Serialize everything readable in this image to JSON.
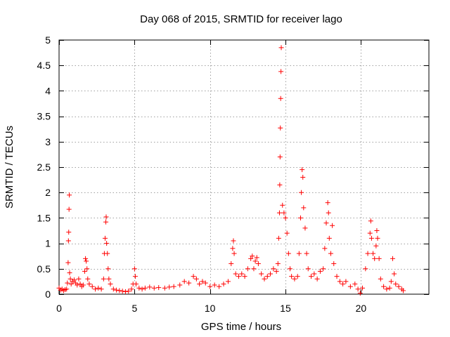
{
  "chart_data": {
    "type": "scatter",
    "title": "Day 068 of 2015, SRMTID for receiver lago",
    "xlabel": "GPS time / hours",
    "ylabel": "SRMTID / TECUs",
    "xlim": [
      0,
      24.5
    ],
    "ylim": [
      0,
      5
    ],
    "x_ticks": [
      0,
      5,
      10,
      15,
      20
    ],
    "x_tick_labels": [
      "0",
      "5",
      "10",
      "15",
      "20"
    ],
    "y_ticks": [
      0,
      0.5,
      1,
      1.5,
      2,
      2.5,
      3,
      3.5,
      4,
      4.5,
      5
    ],
    "y_tick_labels": [
      "0",
      "0.5",
      "1",
      "1.5",
      "2",
      "2.5",
      "3",
      "3.5",
      "4",
      "4.5",
      "5"
    ],
    "grid": true,
    "marker": "plus",
    "color": "#ff0000",
    "series": [
      {
        "name": "SRMTID",
        "points": [
          [
            0.0,
            0.12
          ],
          [
            0.1,
            0.08
          ],
          [
            0.2,
            0.1
          ],
          [
            0.3,
            0.07
          ],
          [
            0.4,
            0.09
          ],
          [
            0.5,
            0.1
          ],
          [
            0.55,
            0.22
          ],
          [
            0.6,
            0.62
          ],
          [
            0.62,
            1.05
          ],
          [
            0.64,
            1.22
          ],
          [
            0.66,
            1.67
          ],
          [
            0.68,
            1.95
          ],
          [
            0.7,
            0.42
          ],
          [
            0.75,
            0.3
          ],
          [
            0.8,
            0.2
          ],
          [
            0.9,
            0.25
          ],
          [
            1.0,
            0.28
          ],
          [
            1.1,
            0.22
          ],
          [
            1.2,
            0.18
          ],
          [
            1.3,
            0.3
          ],
          [
            1.4,
            0.2
          ],
          [
            1.5,
            0.15
          ],
          [
            1.6,
            0.18
          ],
          [
            1.7,
            0.45
          ],
          [
            1.75,
            0.7
          ],
          [
            1.8,
            0.65
          ],
          [
            1.85,
            0.5
          ],
          [
            1.9,
            0.3
          ],
          [
            2.0,
            0.2
          ],
          [
            2.2,
            0.15
          ],
          [
            2.4,
            0.1
          ],
          [
            2.6,
            0.12
          ],
          [
            2.8,
            0.1
          ],
          [
            2.95,
            0.3
          ],
          [
            3.0,
            0.8
          ],
          [
            3.05,
            1.1
          ],
          [
            3.1,
            1.42
          ],
          [
            3.12,
            1.52
          ],
          [
            3.15,
            1.0
          ],
          [
            3.2,
            0.8
          ],
          [
            3.25,
            0.5
          ],
          [
            3.3,
            0.3
          ],
          [
            3.4,
            0.2
          ],
          [
            3.6,
            0.1
          ],
          [
            3.8,
            0.08
          ],
          [
            4.0,
            0.07
          ],
          [
            4.2,
            0.06
          ],
          [
            4.4,
            0.05
          ],
          [
            4.6,
            0.06
          ],
          [
            4.8,
            0.1
          ],
          [
            4.9,
            0.2
          ],
          [
            5.0,
            0.5
          ],
          [
            5.05,
            0.35
          ],
          [
            5.1,
            0.2
          ],
          [
            5.3,
            0.12
          ],
          [
            5.5,
            0.1
          ],
          [
            5.7,
            0.12
          ],
          [
            6.0,
            0.14
          ],
          [
            6.3,
            0.12
          ],
          [
            6.6,
            0.13
          ],
          [
            7.0,
            0.12
          ],
          [
            7.3,
            0.14
          ],
          [
            7.6,
            0.15
          ],
          [
            8.0,
            0.18
          ],
          [
            8.3,
            0.25
          ],
          [
            8.6,
            0.22
          ],
          [
            8.9,
            0.35
          ],
          [
            9.1,
            0.3
          ],
          [
            9.3,
            0.2
          ],
          [
            9.5,
            0.25
          ],
          [
            9.7,
            0.22
          ],
          [
            10.0,
            0.15
          ],
          [
            10.3,
            0.18
          ],
          [
            10.6,
            0.15
          ],
          [
            10.9,
            0.2
          ],
          [
            11.2,
            0.25
          ],
          [
            11.4,
            0.6
          ],
          [
            11.5,
            0.9
          ],
          [
            11.55,
            1.05
          ],
          [
            11.6,
            0.8
          ],
          [
            11.7,
            0.4
          ],
          [
            11.9,
            0.35
          ],
          [
            12.1,
            0.4
          ],
          [
            12.3,
            0.35
          ],
          [
            12.5,
            0.5
          ],
          [
            12.7,
            0.7
          ],
          [
            12.8,
            0.75
          ],
          [
            12.9,
            0.5
          ],
          [
            13.0,
            0.65
          ],
          [
            13.1,
            0.72
          ],
          [
            13.2,
            0.6
          ],
          [
            13.4,
            0.4
          ],
          [
            13.6,
            0.3
          ],
          [
            13.8,
            0.35
          ],
          [
            14.0,
            0.4
          ],
          [
            14.2,
            0.5
          ],
          [
            14.4,
            0.45
          ],
          [
            14.5,
            0.6
          ],
          [
            14.55,
            1.1
          ],
          [
            14.6,
            1.6
          ],
          [
            14.62,
            2.15
          ],
          [
            14.64,
            2.7
          ],
          [
            14.66,
            3.27
          ],
          [
            14.68,
            3.85
          ],
          [
            14.7,
            4.38
          ],
          [
            14.72,
            4.85
          ],
          [
            14.8,
            1.75
          ],
          [
            14.9,
            1.6
          ],
          [
            15.0,
            1.5
          ],
          [
            15.1,
            1.2
          ],
          [
            15.2,
            0.8
          ],
          [
            15.3,
            0.5
          ],
          [
            15.4,
            0.35
          ],
          [
            15.6,
            0.3
          ],
          [
            15.8,
            0.35
          ],
          [
            15.9,
            0.8
          ],
          [
            16.0,
            1.5
          ],
          [
            16.05,
            2.0
          ],
          [
            16.1,
            2.45
          ],
          [
            16.15,
            2.3
          ],
          [
            16.2,
            1.7
          ],
          [
            16.3,
            1.3
          ],
          [
            16.4,
            0.8
          ],
          [
            16.5,
            0.5
          ],
          [
            16.7,
            0.35
          ],
          [
            16.9,
            0.4
          ],
          [
            17.1,
            0.3
          ],
          [
            17.3,
            0.45
          ],
          [
            17.5,
            0.5
          ],
          [
            17.6,
            0.9
          ],
          [
            17.7,
            1.4
          ],
          [
            17.8,
            1.8
          ],
          [
            17.85,
            1.6
          ],
          [
            17.9,
            1.1
          ],
          [
            18.0,
            0.8
          ],
          [
            18.1,
            1.35
          ],
          [
            18.2,
            0.6
          ],
          [
            18.4,
            0.35
          ],
          [
            18.6,
            0.25
          ],
          [
            18.8,
            0.2
          ],
          [
            19.0,
            0.25
          ],
          [
            19.3,
            0.15
          ],
          [
            19.6,
            0.2
          ],
          [
            19.8,
            0.1
          ],
          [
            19.95,
            0.02
          ],
          [
            20.1,
            0.12
          ],
          [
            20.3,
            0.5
          ],
          [
            20.45,
            0.8
          ],
          [
            20.6,
            1.2
          ],
          [
            20.65,
            1.44
          ],
          [
            20.7,
            1.1
          ],
          [
            20.8,
            0.8
          ],
          [
            20.9,
            0.7
          ],
          [
            21.0,
            0.95
          ],
          [
            21.05,
            1.25
          ],
          [
            21.1,
            1.1
          ],
          [
            21.2,
            0.7
          ],
          [
            21.3,
            0.3
          ],
          [
            21.5,
            0.15
          ],
          [
            21.7,
            0.1
          ],
          [
            21.9,
            0.12
          ],
          [
            22.0,
            0.25
          ],
          [
            22.1,
            0.7
          ],
          [
            22.2,
            0.4
          ],
          [
            22.3,
            0.2
          ],
          [
            22.5,
            0.15
          ],
          [
            22.7,
            0.1
          ],
          [
            22.8,
            0.07
          ]
        ]
      }
    ]
  }
}
